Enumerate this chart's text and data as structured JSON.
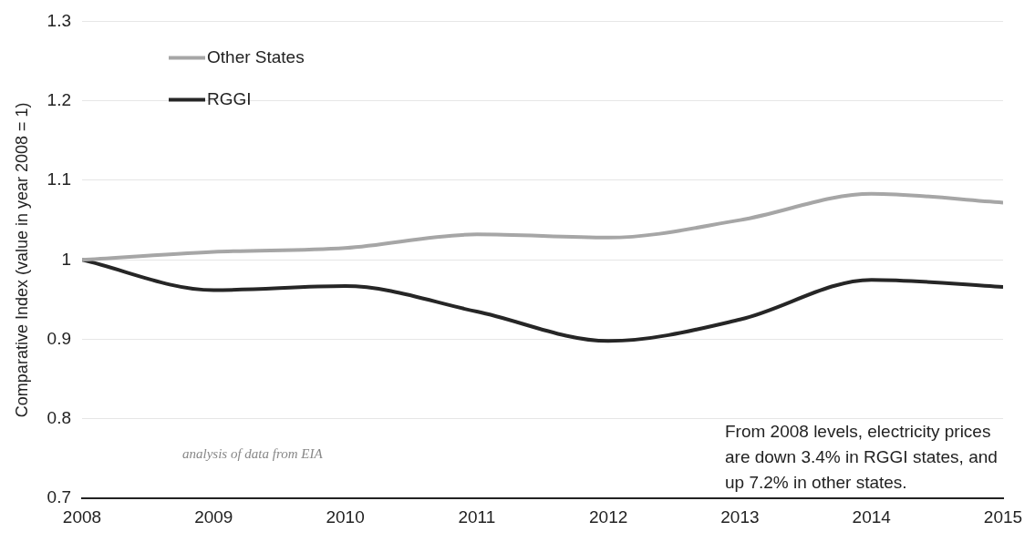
{
  "chart_data": {
    "type": "line",
    "ylabel": "Comparative Index (value in year 2008 = 1)",
    "x": [
      2008,
      2009,
      2010,
      2011,
      2012,
      2013,
      2014,
      2015
    ],
    "series": [
      {
        "name": "Other States",
        "color": "#a6a6a6",
        "values": [
          1.0,
          1.01,
          1.015,
          1.032,
          1.028,
          1.05,
          1.083,
          1.072
        ]
      },
      {
        "name": "RGGI",
        "color": "#262626",
        "values": [
          1.0,
          0.962,
          0.967,
          0.935,
          0.898,
          0.925,
          0.975,
          0.966
        ]
      }
    ],
    "xlim": [
      2008,
      2015
    ],
    "xticks": [
      2008,
      2009,
      2010,
      2011,
      2012,
      2013,
      2014,
      2015
    ],
    "ylim": [
      0.7,
      1.3
    ],
    "yticks": [
      0.7,
      0.8,
      0.9,
      1,
      1.1,
      1.2,
      1.3
    ],
    "grid": "y",
    "legend": "top left",
    "marker": "none",
    "line_style": "solid",
    "annotations": [
      "From 2008 levels, electricity prices are down 3.4% in RGGI states, and up 7.2% in other states.",
      "analysis of data from EIA"
    ]
  }
}
